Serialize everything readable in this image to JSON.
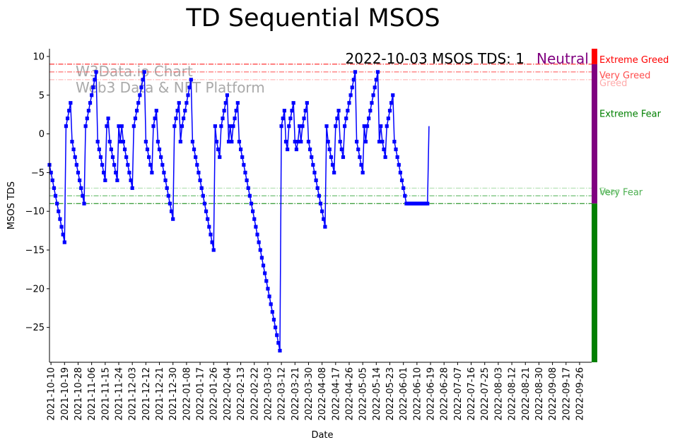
{
  "chart_data": {
    "type": "line",
    "title": "TD Sequential MSOS",
    "xlabel": "Date",
    "ylabel": "MSOS TDS",
    "annotation": "2022-10-03 MSOS TDS: 1",
    "status_label": "Neutral",
    "status_color": "#800080",
    "watermark_lines": [
      "W3Data.io Chart",
      "Web3 Data & NFT Platform"
    ],
    "ylim": [
      -29.5,
      11
    ],
    "yticks": [
      10,
      5,
      0,
      -5,
      -10,
      -15,
      -20,
      -25
    ],
    "xlim": [
      "2021-10-09",
      "2022-10-04"
    ],
    "xticks": [
      "2021-10-10",
      "2021-10-19",
      "2021-10-28",
      "2021-11-06",
      "2021-11-15",
      "2021-11-24",
      "2021-12-03",
      "2021-12-12",
      "2021-12-21",
      "2021-12-30",
      "2022-01-08",
      "2022-01-17",
      "2022-01-26",
      "2022-02-04",
      "2022-02-13",
      "2022-02-22",
      "2022-03-03",
      "2022-03-12",
      "2022-03-21",
      "2022-03-30",
      "2022-04-08",
      "2022-04-17",
      "2022-04-26",
      "2022-05-05",
      "2022-05-14",
      "2022-05-23",
      "2022-06-01",
      "2022-06-10",
      "2022-06-19",
      "2022-06-28",
      "2022-07-07",
      "2022-07-16",
      "2022-07-25",
      "2022-08-03",
      "2022-08-12",
      "2022-08-21",
      "2022-08-30",
      "2022-09-08",
      "2022-09-17",
      "2022-09-26"
    ],
    "series_color": "#0000ff",
    "thresholds": [
      {
        "label": "Extreme Greed",
        "value": 9,
        "color": "#ff0000"
      },
      {
        "label": "Very Greed",
        "value": 8,
        "color": "#ff4d4d"
      },
      {
        "label": "Greed",
        "value": 7,
        "color": "#ffaaaa"
      },
      {
        "label": "Fear",
        "value": -7,
        "color": "#a8dba8"
      },
      {
        "label": "Very Fear",
        "value": -8,
        "color": "#4caf50"
      },
      {
        "label": "Extreme Fear",
        "value": -9,
        "color": "#008000"
      }
    ],
    "zones": [
      {
        "from": 9,
        "to": 11,
        "color": "#ff0000"
      },
      {
        "from": -9,
        "to": 9,
        "color": "#800080"
      },
      {
        "from": -29.5,
        "to": -9,
        "color": "#008000"
      }
    ],
    "series": [
      {
        "start_date": "2021-10-09",
        "values": [
          -4,
          -5,
          -6,
          -7,
          -8,
          -9,
          -10,
          -11,
          -12,
          -13,
          -14,
          1,
          2,
          3,
          4,
          -1,
          -2,
          -3,
          -4,
          -5,
          -6,
          -7,
          -8,
          -9,
          1,
          2,
          3,
          4,
          5,
          6,
          7,
          8,
          -1,
          -2,
          -3,
          -4,
          -5,
          -6,
          1,
          2,
          -1,
          -2,
          -3,
          -4,
          -5,
          -6,
          1,
          -1,
          1,
          -1,
          -2,
          -3,
          -4,
          -5,
          -6,
          -7,
          1,
          2,
          3,
          4,
          5,
          6,
          7,
          8,
          -1,
          -2,
          -3,
          -4,
          -5,
          1,
          2,
          3,
          -1,
          -2,
          -3,
          -4,
          -5,
          -6,
          -7,
          -8,
          -9,
          -10,
          -11,
          1,
          2,
          3,
          4,
          -1,
          1,
          2,
          3,
          4,
          5,
          6,
          7,
          -1,
          -2,
          -3,
          -4,
          -5,
          -6,
          -7,
          -8,
          -9,
          -10,
          -11,
          -12,
          -13,
          -14,
          -15,
          1,
          -1,
          -2,
          -3,
          1,
          2,
          3,
          4,
          5,
          -1,
          1,
          -1,
          1,
          2,
          3,
          4,
          -1,
          -2,
          -3,
          -4,
          -5,
          -6,
          -7,
          -8,
          -9,
          -10,
          -11,
          -12,
          -13,
          -14,
          -15,
          -16,
          -17,
          -18,
          -19,
          -20,
          -21,
          -22,
          -23,
          -24,
          -25,
          -26,
          -27,
          -28,
          1,
          2,
          3,
          -1,
          -2,
          1,
          2,
          3,
          4,
          -1,
          -2,
          -1,
          1,
          -1,
          1,
          2,
          3,
          4,
          -1,
          -2,
          -3,
          -4,
          -5,
          -6,
          -7,
          -8,
          -9,
          -10,
          -11,
          -12,
          1,
          -1,
          -2,
          -3,
          -4,
          -5,
          1,
          2,
          3,
          -1,
          -2,
          -3,
          1,
          2,
          3,
          4,
          5,
          6,
          7,
          8,
          -1,
          -2,
          -3,
          -4,
          -5,
          1,
          -1,
          1,
          2,
          3,
          4,
          5,
          6,
          7,
          8,
          -1,
          1,
          -1,
          -2,
          -3,
          1,
          2,
          3,
          4,
          5,
          -1,
          -2,
          -3,
          -4,
          -5,
          -6,
          -7,
          -8,
          -9,
          -9,
          -9,
          -9,
          -9,
          -9,
          -9,
          -9,
          -9,
          -9,
          -9,
          -9,
          -9,
          -9,
          -9,
          1
        ]
      }
    ],
    "grid": false,
    "legend": "right side zone labels"
  }
}
